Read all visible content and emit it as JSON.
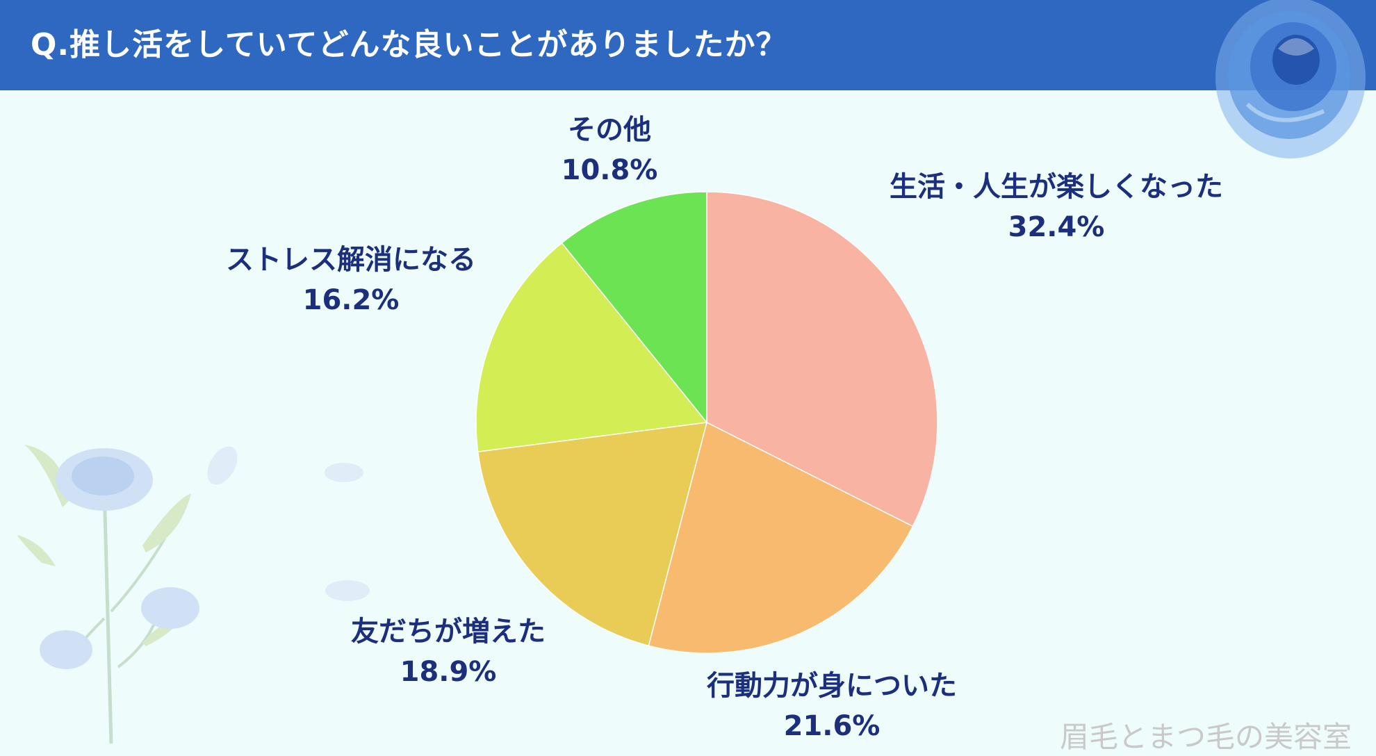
{
  "header": {
    "title": "Q.推し活をしていてどんな良いことがありましたか？"
  },
  "chart_data": {
    "type": "pie",
    "title": "",
    "slices": [
      {
        "label": "生活・人生が楽しくなった",
        "value": 32.4,
        "display": "32.4%",
        "color": "#f9b3a2"
      },
      {
        "label": "行動力が身についた",
        "value": 21.6,
        "display": "21.6%",
        "color": "#f7ba6f"
      },
      {
        "label": "友だちが増えた",
        "value": 18.9,
        "display": "18.9%",
        "color": "#e8cc55"
      },
      {
        "label": "ストレス解消になる",
        "value": 16.2,
        "display": "16.2%",
        "color": "#d3ed55"
      },
      {
        "label": "その他",
        "value": 10.8,
        "display": "10.8%",
        "color": "#6ce352"
      }
    ],
    "start": "12 o'clock",
    "direction": "clockwise"
  },
  "watermark": "眉毛とまつ毛の美容室"
}
